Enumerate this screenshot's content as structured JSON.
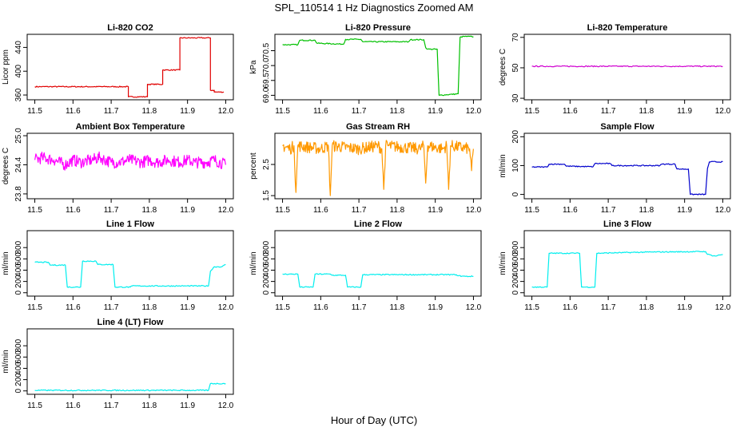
{
  "title": "SPL_110514  1 Hz Diagnostics Zoomed AM",
  "xlabel": "Hour of Day (UTC)",
  "chart_data": [
    {
      "type": "line",
      "title": "Li-820 CO2",
      "ylabel": "Licor ppm",
      "color": "#e00000",
      "xlim": [
        11.48,
        12.02
      ],
      "ylim": [
        352,
        462
      ],
      "xticks": [
        "11.5",
        "11.6",
        "11.7",
        "11.8",
        "11.9",
        "12.0"
      ],
      "yticks": [
        "360",
        "400",
        "440"
      ],
      "series": [
        {
          "x": [
            11.5,
            11.745,
            11.745,
            11.795,
            11.795,
            11.835,
            11.835,
            11.88,
            11.88,
            11.96,
            11.96,
            11.97,
            11.97,
            11.995
          ],
          "y": [
            374,
            374,
            357,
            357,
            378,
            378,
            402,
            402,
            456,
            456,
            368,
            368,
            365,
            365
          ]
        }
      ]
    },
    {
      "type": "line",
      "title": "Li-820 Pressure",
      "ylabel": "kPa",
      "color": "#00c000",
      "xlim": [
        11.48,
        12.02
      ],
      "ylim": [
        68.85,
        71.05
      ],
      "xticks": [
        "11.5",
        "11.6",
        "11.7",
        "11.8",
        "11.9",
        "12.0"
      ],
      "yticks": [
        "69.0",
        "69.5",
        "70.0",
        "70.5"
      ],
      "series": [
        {
          "x": [
            11.5,
            11.54,
            11.545,
            11.585,
            11.59,
            11.66,
            11.665,
            11.705,
            11.71,
            11.83,
            11.835,
            11.87,
            11.875,
            11.88,
            11.905,
            11.91,
            11.96,
            11.965,
            11.975,
            12.0
          ],
          "y": [
            70.7,
            70.7,
            70.85,
            70.85,
            70.75,
            70.72,
            70.88,
            70.88,
            70.8,
            70.8,
            70.87,
            70.87,
            70.6,
            70.55,
            70.55,
            69.0,
            69.05,
            70.95,
            70.98,
            70.97
          ]
        }
      ]
    },
    {
      "type": "line",
      "title": "Li-820 Temperature",
      "ylabel": "degrees C",
      "color": "#d000d0",
      "xlim": [
        11.48,
        12.02
      ],
      "ylim": [
        29,
        72
      ],
      "xticks": [
        "11.5",
        "11.6",
        "11.7",
        "11.8",
        "11.9",
        "12.0"
      ],
      "yticks": [
        "30",
        "50",
        "70"
      ],
      "series": [
        {
          "x": [
            11.5,
            12.0
          ],
          "y": [
            51,
            51
          ]
        }
      ]
    },
    {
      "type": "line",
      "title": "Ambient Box Temperature",
      "ylabel": "degrees C",
      "color": "#ff00ff",
      "xlim": [
        11.48,
        12.02
      ],
      "ylim": [
        23.7,
        25.05
      ],
      "xticks": [
        "11.5",
        "11.6",
        "11.7",
        "11.8",
        "11.9",
        "12.0"
      ],
      "yticks": [
        "23.8",
        "24.4",
        "25.0"
      ],
      "series": [
        {
          "x": [
            11.5,
            11.52,
            11.55,
            11.58,
            11.6,
            11.62,
            11.65,
            11.67,
            11.7,
            11.72,
            11.75,
            11.78,
            11.8,
            11.82,
            11.85,
            11.88,
            11.9,
            11.92,
            11.95,
            11.97,
            12.0
          ],
          "y": [
            24.5,
            24.55,
            24.5,
            24.4,
            24.5,
            24.45,
            24.5,
            24.55,
            24.45,
            24.45,
            24.5,
            24.45,
            24.5,
            24.45,
            24.5,
            24.45,
            24.5,
            24.45,
            24.45,
            24.5,
            24.4
          ]
        }
      ]
    },
    {
      "type": "line",
      "title": "Gas Stream RH",
      "ylabel": "percent",
      "color": "#ff9900",
      "xlim": [
        11.48,
        12.02
      ],
      "ylim": [
        1.4,
        3.5
      ],
      "xticks": [
        "11.5",
        "11.6",
        "11.7",
        "11.8",
        "11.9",
        "12.0"
      ],
      "yticks": [
        "1.5",
        "2.5"
      ],
      "series": [
        {
          "x": [
            11.5,
            11.52,
            11.53,
            11.535,
            11.54,
            11.6,
            11.62,
            11.625,
            11.63,
            11.7,
            11.75,
            11.76,
            11.765,
            11.77,
            11.86,
            11.87,
            11.875,
            11.88,
            11.92,
            11.93,
            11.935,
            11.94,
            11.99,
            11.995,
            12.0
          ],
          "y": [
            3.1,
            3.0,
            3.1,
            1.6,
            3.1,
            3.0,
            3.1,
            1.5,
            3.1,
            3.0,
            3.1,
            3.0,
            1.7,
            3.1,
            3.0,
            3.1,
            1.9,
            3.1,
            3.0,
            3.1,
            1.7,
            3.1,
            3.0,
            2.3,
            3.0
          ]
        }
      ]
    },
    {
      "type": "line",
      "title": "Sample Flow",
      "ylabel": "ml/min",
      "color": "#0000cc",
      "xlim": [
        11.48,
        12.02
      ],
      "ylim": [
        -15,
        212
      ],
      "xticks": [
        "11.5",
        "11.6",
        "11.7",
        "11.8",
        "11.9",
        "12.0"
      ],
      "yticks": [
        "0",
        "100",
        "200"
      ],
      "series": [
        {
          "x": [
            11.5,
            11.54,
            11.545,
            11.585,
            11.59,
            11.66,
            11.665,
            11.705,
            11.71,
            11.835,
            11.84,
            11.875,
            11.88,
            11.91,
            11.915,
            11.955,
            11.96,
            11.965,
            12.0
          ],
          "y": [
            95,
            95,
            105,
            105,
            98,
            96,
            107,
            107,
            100,
            100,
            105,
            105,
            88,
            88,
            0,
            0,
            90,
            113,
            113
          ]
        }
      ]
    },
    {
      "type": "line",
      "title": "Line 1 Flow",
      "ylabel": "ml/min",
      "color": "#00eeee",
      "xlim": [
        11.48,
        12.02
      ],
      "ylim": [
        -60,
        1100
      ],
      "xticks": [
        "11.5",
        "11.6",
        "11.7",
        "11.8",
        "11.9",
        "12.0"
      ],
      "yticks": [
        "0",
        "200",
        "400",
        "600",
        "800"
      ],
      "series": [
        {
          "x": [
            11.5,
            11.535,
            11.54,
            11.58,
            11.585,
            11.62,
            11.625,
            11.66,
            11.665,
            11.705,
            11.71,
            11.75,
            11.755,
            11.955,
            11.96,
            11.97,
            11.99,
            12.0
          ],
          "y": [
            540,
            540,
            490,
            490,
            100,
            100,
            560,
            560,
            500,
            500,
            100,
            100,
            120,
            120,
            380,
            460,
            460,
            500
          ]
        }
      ]
    },
    {
      "type": "line",
      "title": "Line 2 Flow",
      "ylabel": "ml/min",
      "color": "#00eeee",
      "xlim": [
        11.48,
        12.02
      ],
      "ylim": [
        -60,
        1100
      ],
      "xticks": [
        "11.5",
        "11.6",
        "11.7",
        "11.8",
        "11.9",
        "12.0"
      ],
      "yticks": [
        "0",
        "200",
        "400",
        "600",
        "800"
      ],
      "series": [
        {
          "x": [
            11.5,
            11.54,
            11.545,
            11.58,
            11.585,
            11.625,
            11.63,
            11.665,
            11.67,
            11.705,
            11.71,
            11.955,
            11.96,
            11.98,
            12.0
          ],
          "y": [
            330,
            330,
            100,
            100,
            330,
            330,
            310,
            310,
            100,
            100,
            320,
            320,
            300,
            290,
            290
          ]
        }
      ]
    },
    {
      "type": "line",
      "title": "Line 3 Flow",
      "ylabel": "ml/min",
      "color": "#00eeee",
      "xlim": [
        11.48,
        12.02
      ],
      "ylim": [
        -60,
        1100
      ],
      "xticks": [
        "11.5",
        "11.6",
        "11.7",
        "11.8",
        "11.9",
        "12.0"
      ],
      "yticks": [
        "0",
        "200",
        "400",
        "600",
        "800"
      ],
      "series": [
        {
          "x": [
            11.5,
            11.54,
            11.545,
            11.625,
            11.63,
            11.665,
            11.67,
            11.8,
            11.955,
            11.96,
            11.98,
            12.0
          ],
          "y": [
            100,
            100,
            700,
            700,
            100,
            100,
            700,
            720,
            730,
            680,
            650,
            680
          ]
        }
      ]
    },
    {
      "type": "line",
      "title": "Line 4 (LT) Flow",
      "ylabel": "ml/min",
      "color": "#00eeee",
      "xlim": [
        11.48,
        12.02
      ],
      "ylim": [
        -60,
        1100
      ],
      "xticks": [
        "11.5",
        "11.6",
        "11.7",
        "11.8",
        "11.9",
        "12.0"
      ],
      "yticks": [
        "0",
        "200",
        "400",
        "600",
        "800"
      ],
      "series": [
        {
          "x": [
            11.5,
            11.955,
            11.96,
            12.0
          ],
          "y": [
            10,
            10,
            130,
            130
          ]
        }
      ]
    }
  ]
}
